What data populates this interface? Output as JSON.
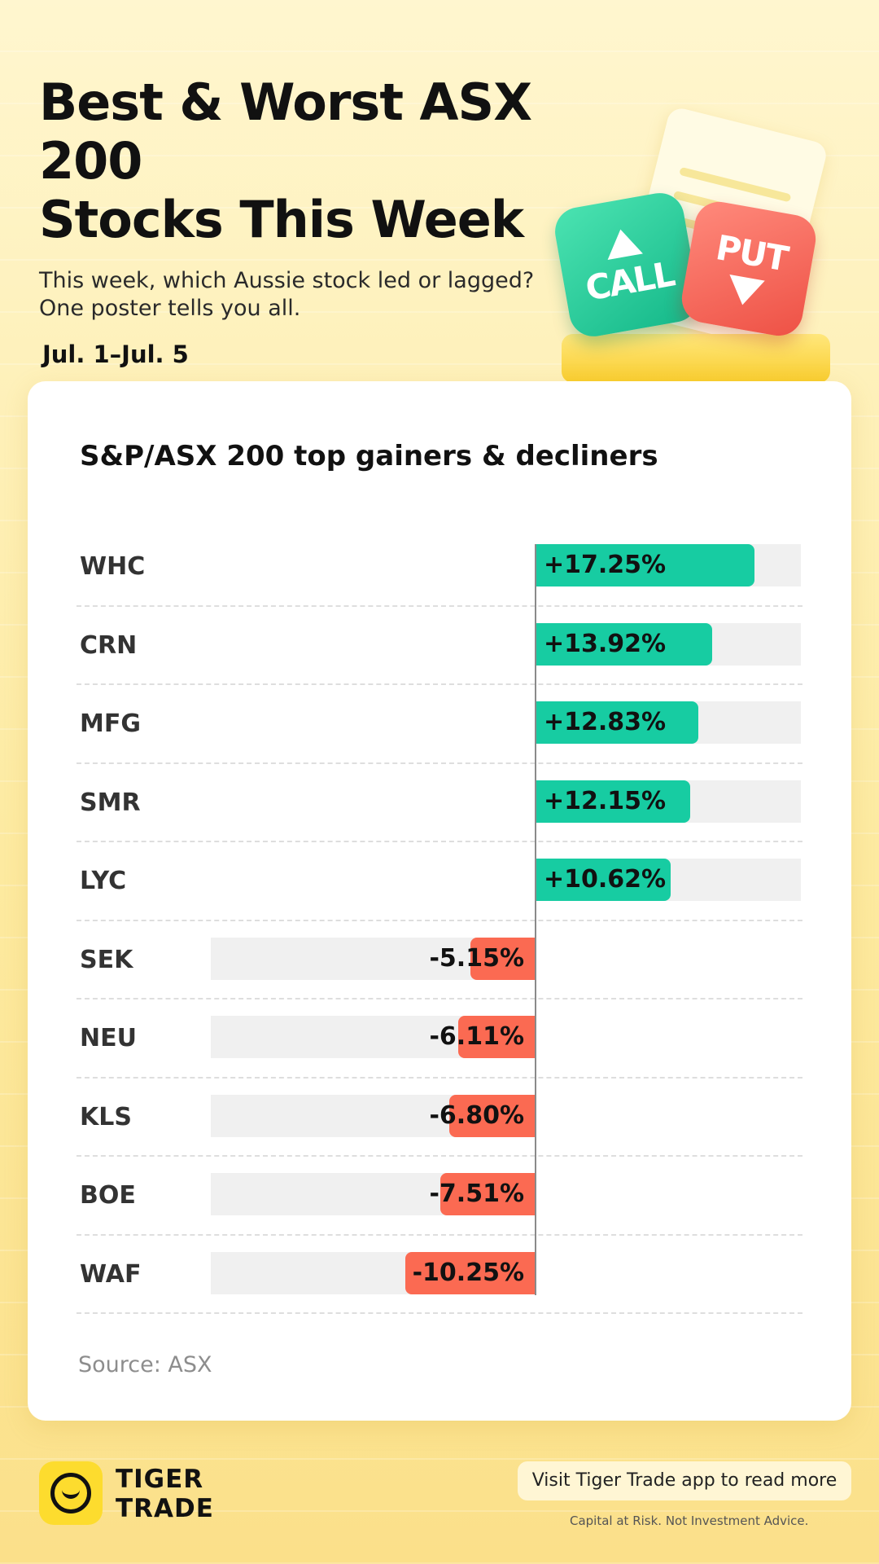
{
  "header": {
    "title_line1": "Best & Worst ASX 200",
    "title_line2": "Stocks This Week",
    "subtitle_line1": "This week, which Aussie stock led or lagged?",
    "subtitle_line2": "One poster tells you all.",
    "dates": "Jul. 1–Jul. 5"
  },
  "illustration": {
    "call_label": "CALL",
    "put_label": "PUT"
  },
  "chart_data": {
    "type": "bar",
    "title": "S&P/ASX 200 top gainers & decliners",
    "categories": [
      "WHC",
      "CRN",
      "MFG",
      "SMR",
      "LYC",
      "SEK",
      "NEU",
      "KLS",
      "BOE",
      "WAF"
    ],
    "values": [
      17.25,
      13.92,
      12.83,
      12.15,
      10.62,
      -5.15,
      -6.11,
      -6.8,
      -7.51,
      -10.25
    ],
    "value_labels": [
      "+17.25%",
      "+13.92%",
      "+12.83%",
      "+12.15%",
      "+10.62%",
      "-5.15%",
      "-6.11%",
      "-6.80%",
      "-7.51%",
      "-10.25%"
    ],
    "orientation": "horizontal",
    "positive_color": "#17cca2",
    "negative_color": "#fb6a52",
    "xlim": [
      -20.9,
      20.9
    ]
  },
  "source": "Source: ASX",
  "footer": {
    "brand_line1": "TIGER",
    "brand_line2": "TRADE",
    "cta": "Visit Tiger Trade app to read more",
    "disclaimer": "Capital at Risk. Not Investment Advice."
  }
}
